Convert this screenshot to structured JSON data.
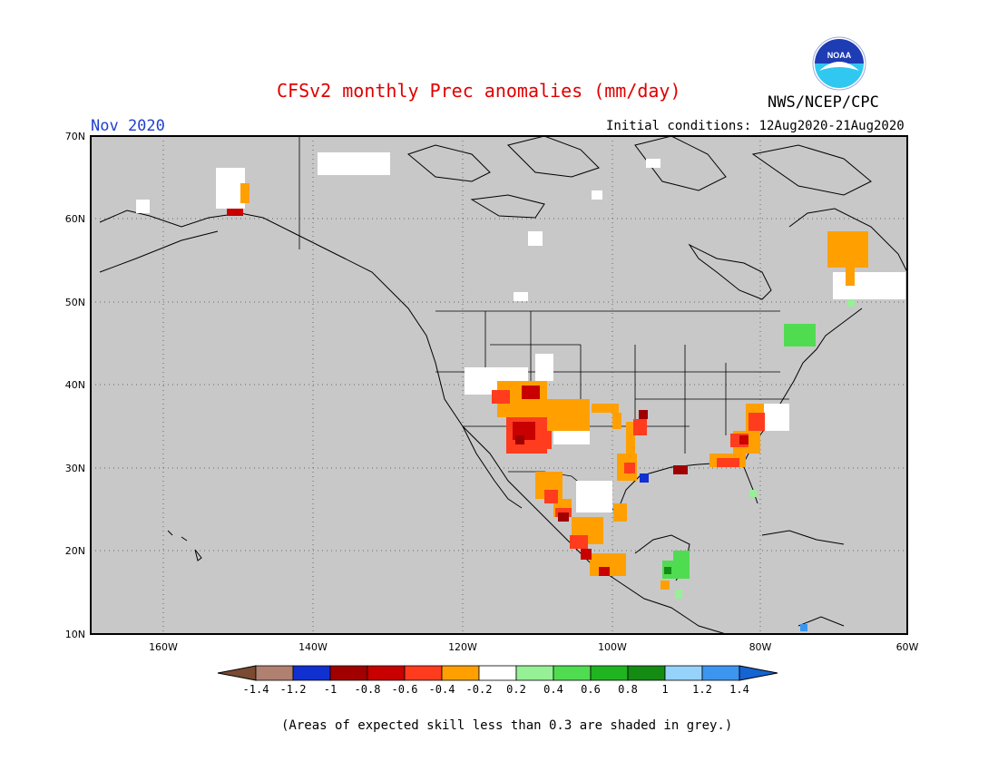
{
  "header": {
    "title": "CFSv2 monthly Prec anomalies (mm/day)",
    "month": "Nov 2020",
    "initial_conditions": "Initial conditions: 12Aug2020-21Aug2020",
    "organization": "NWS/NCEP/CPC",
    "logo_text": "NOAA"
  },
  "map": {
    "lat_labels": [
      "70N",
      "60N",
      "50N",
      "40N",
      "30N",
      "20N",
      "10N"
    ],
    "lon_labels": [
      "160W",
      "140W",
      "120W",
      "100W",
      "80W",
      "60W"
    ],
    "background_color": "#c8c8c8",
    "skill_mask_note": "grey"
  },
  "colorbar": {
    "labels": [
      "-1.4",
      "-1.2",
      "-1",
      "-0.8",
      "-0.6",
      "-0.4",
      "-0.2",
      "0.2",
      "0.4",
      "0.6",
      "0.8",
      "1",
      "1.2",
      "1.4"
    ],
    "colors": [
      "#7a4a32",
      "#b08070",
      "#1030d0",
      "#a00000",
      "#c80000",
      "#ff3c1e",
      "#ffa000",
      "#ffffff",
      "#96f096",
      "#50dc50",
      "#20b420",
      "#148c14",
      "#96d2fa",
      "#3c96f0",
      "#1464d2"
    ]
  },
  "footnote": "(Areas of expected skill less than 0.3 are shaded in grey.)"
}
